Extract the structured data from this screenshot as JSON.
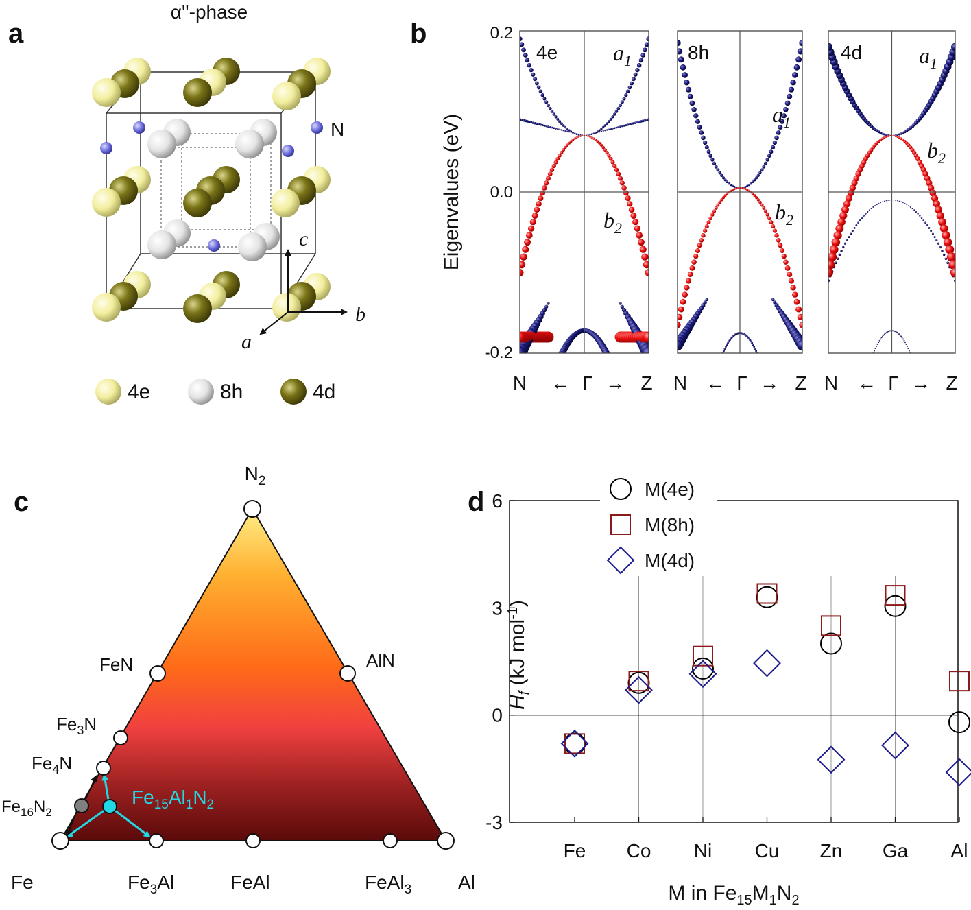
{
  "panels": {
    "a": {
      "label": "a",
      "title": "α''-phase",
      "n_label": "N",
      "axes": {
        "a": "a",
        "b": "b",
        "c": "c"
      },
      "legend": [
        {
          "name": "4e",
          "color": "#f2ee9e"
        },
        {
          "name": "8h",
          "color": "#ececec"
        },
        {
          "name": "4d",
          "color": "#7a7418"
        }
      ]
    },
    "b": {
      "label": "b",
      "ylabel": "Eigenvalues (eV)",
      "yticks": [
        "0.2",
        "0.0",
        "-0.2"
      ],
      "subpanels": [
        {
          "name": "4e",
          "labels": [
            "a",
            "1",
            "b",
            "2"
          ]
        },
        {
          "name": "8h",
          "labels": [
            "a",
            "1",
            "b",
            "2"
          ]
        },
        {
          "name": "4d",
          "labels": [
            "a",
            "1",
            "b",
            "2"
          ]
        }
      ],
      "kpath": [
        "N",
        "←",
        "Γ",
        "→",
        "Z"
      ],
      "colors": {
        "a1": "#1a1a7a",
        "b2": "#ee1111"
      }
    },
    "c": {
      "label": "c",
      "vertices": [
        "N",
        "2",
        "Fe",
        "Al"
      ],
      "points": {
        "FeN": [
          "FeN"
        ],
        "AlN": [
          "AlN"
        ],
        "Fe3N": [
          "Fe",
          "3",
          "N"
        ],
        "Fe4N": [
          "Fe",
          "4",
          "N"
        ],
        "Fe16N2": [
          "Fe",
          "16",
          "N",
          "2"
        ],
        "Fe15Al1N2": [
          "Fe",
          "15",
          "Al",
          "1",
          "N",
          "2"
        ],
        "Fe3Al": [
          "Fe",
          "3",
          "Al"
        ],
        "FeAl": [
          "FeAl"
        ],
        "FeAl3": [
          "FeAl",
          "3"
        ]
      },
      "highlight_color": "#22d8e6"
    },
    "d": {
      "label": "d"
    }
  },
  "chart_data": {
    "type": "scatter",
    "title": "",
    "xlabel": [
      "M in Fe",
      "15",
      "M",
      "1",
      "N",
      "2"
    ],
    "ylabel": [
      "H",
      "f",
      " (kJ mol",
      "-1",
      ")"
    ],
    "categories": [
      "Fe",
      "Co",
      "Ni",
      "Cu",
      "Zn",
      "Ga",
      "Al"
    ],
    "ylim": [
      -3,
      6
    ],
    "yticks": [
      "6",
      "3",
      "0",
      "-3"
    ],
    "series": [
      {
        "name": "M(4e)",
        "marker": "circle",
        "color": "#000000",
        "values": [
          -0.8,
          0.9,
          1.3,
          3.3,
          2.0,
          3.05,
          -0.2
        ]
      },
      {
        "name": "M(8h)",
        "marker": "square",
        "color": "#8b1a1a",
        "values": [
          -0.8,
          0.95,
          1.65,
          3.4,
          2.5,
          3.35,
          0.95
        ]
      },
      {
        "name": "M(4d)",
        "marker": "diamond",
        "color": "#1a1a8c",
        "values": [
          -0.8,
          0.7,
          1.15,
          1.45,
          -1.25,
          -0.85,
          -1.6
        ]
      }
    ]
  }
}
